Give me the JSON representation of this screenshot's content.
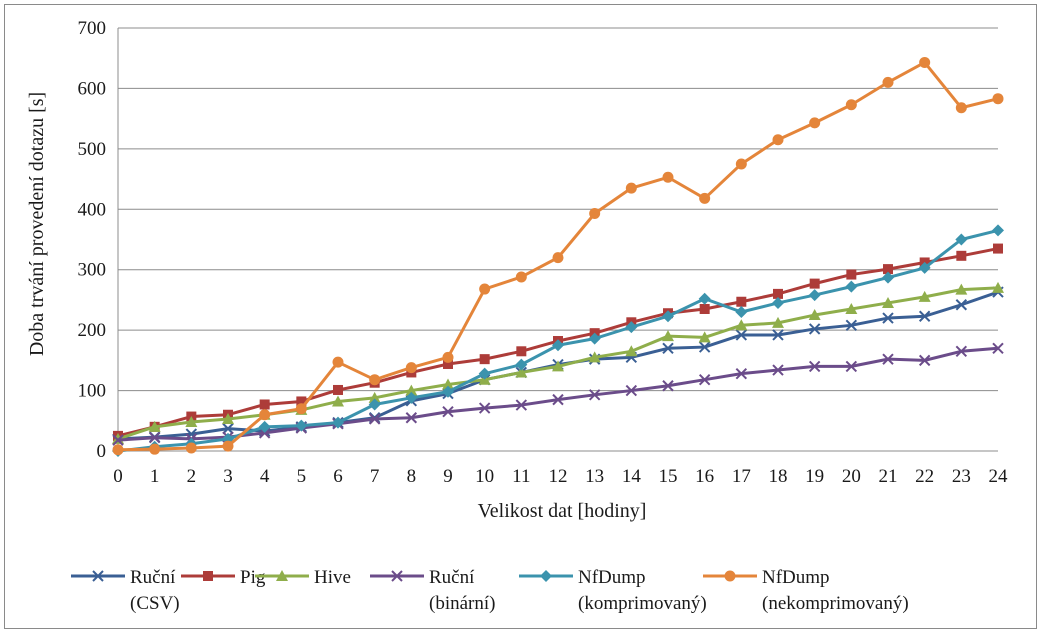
{
  "chart_data": {
    "type": "line",
    "title": "",
    "xlabel": "Velikost dat [hodiny]",
    "ylabel": "Doba trvání provedení dotazu [s]",
    "ylim": [
      0,
      700
    ],
    "yticks": [
      0,
      100,
      200,
      300,
      400,
      500,
      600,
      700
    ],
    "grid": "horizontal",
    "legend_position": "bottom",
    "x": [
      0,
      1,
      2,
      3,
      4,
      5,
      6,
      7,
      8,
      9,
      10,
      11,
      12,
      13,
      14,
      15,
      16,
      17,
      18,
      19,
      20,
      21,
      22,
      23,
      24
    ],
    "series": [
      {
        "name": "Ruční (CSV)",
        "legend_lines": [
          "Ruční",
          "(CSV)"
        ],
        "color": "#3a5f94",
        "marker": "x",
        "values": [
          20,
          23,
          28,
          37,
          33,
          40,
          47,
          55,
          83,
          95,
          118,
          130,
          143,
          152,
          155,
          170,
          172,
          192,
          192,
          202,
          208,
          220,
          223,
          242,
          263
        ]
      },
      {
        "name": "Pig",
        "legend_lines": [
          "Pig"
        ],
        "color": "#ad3c39",
        "marker": "square",
        "values": [
          25,
          40,
          57,
          60,
          77,
          82,
          101,
          113,
          130,
          144,
          152,
          165,
          182,
          195,
          213,
          228,
          235,
          247,
          260,
          277,
          292,
          301,
          312,
          323,
          335
        ]
      },
      {
        "name": "Hive",
        "legend_lines": [
          "Hive"
        ],
        "color": "#8fae4b",
        "marker": "triangle",
        "values": [
          20,
          40,
          48,
          53,
          60,
          68,
          82,
          88,
          100,
          110,
          118,
          130,
          140,
          155,
          165,
          190,
          188,
          208,
          212,
          225,
          235,
          245,
          255,
          267,
          270
        ]
      },
      {
        "name": "Ruční (binární)",
        "legend_lines": [
          "Ruční",
          "(binární)"
        ],
        "color": "#6b4c8a",
        "marker": "x",
        "values": [
          18,
          22,
          20,
          23,
          30,
          38,
          45,
          53,
          55,
          65,
          71,
          76,
          85,
          93,
          100,
          108,
          118,
          128,
          134,
          140,
          140,
          152,
          150,
          165,
          170
        ]
      },
      {
        "name": "NfDump (komprimovaný)",
        "legend_lines": [
          "NfDump",
          "(komprimovaný)"
        ],
        "color": "#3b93ad",
        "marker": "diamond",
        "values": [
          0,
          7,
          12,
          20,
          40,
          42,
          47,
          77,
          88,
          98,
          128,
          143,
          175,
          186,
          205,
          223,
          252,
          230,
          245,
          258,
          272,
          287,
          303,
          350,
          365
        ]
      },
      {
        "name": "NfDump (nekomprimovaný)",
        "legend_lines": [
          "NfDump",
          "(nekomprimovaný)"
        ],
        "color": "#e4853a",
        "marker": "circle",
        "values": [
          2,
          3,
          5,
          8,
          60,
          70,
          147,
          118,
          138,
          155,
          268,
          288,
          320,
          393,
          435,
          453,
          418,
          475,
          515,
          543,
          573,
          610,
          643,
          568,
          583
        ]
      }
    ]
  }
}
